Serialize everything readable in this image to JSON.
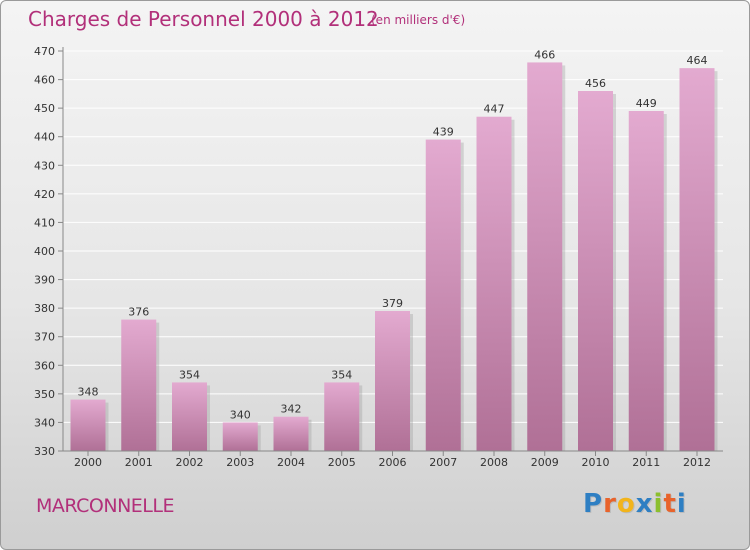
{
  "header": {
    "title": "Charges de Personnel 2000 à 2012",
    "subtitle": "(en milliers d'€)"
  },
  "footer": {
    "commune": "MARCONNELLE",
    "logo_letters": [
      "P",
      "r",
      "o",
      "x",
      "i",
      "t",
      "i"
    ],
    "logo_colors": [
      "#2e7fc3",
      "#e8632b",
      "#f2b41b",
      "#2e7fc3",
      "#8cbf2e",
      "#e8632b",
      "#2e7fc3"
    ]
  },
  "colors": {
    "bar_top": "#e3aad0",
    "bar_bottom": "#b07096",
    "text": "#b2307a"
  },
  "chart_data": {
    "type": "bar",
    "categories": [
      "2000",
      "2001",
      "2002",
      "2003",
      "2004",
      "2005",
      "2006",
      "2007",
      "2008",
      "2009",
      "2010",
      "2011",
      "2012"
    ],
    "values": [
      348,
      376,
      354,
      340,
      342,
      354,
      379,
      439,
      447,
      466,
      456,
      449,
      464
    ],
    "data_labels": [
      "348",
      "376",
      "354",
      "340",
      "342",
      "354",
      "379",
      "439",
      "447",
      "466",
      "456",
      "449",
      "464"
    ],
    "ylim": [
      330,
      470
    ],
    "yticks": [
      330,
      340,
      350,
      360,
      370,
      380,
      390,
      400,
      410,
      420,
      430,
      440,
      450,
      460,
      470
    ],
    "grid": true
  }
}
